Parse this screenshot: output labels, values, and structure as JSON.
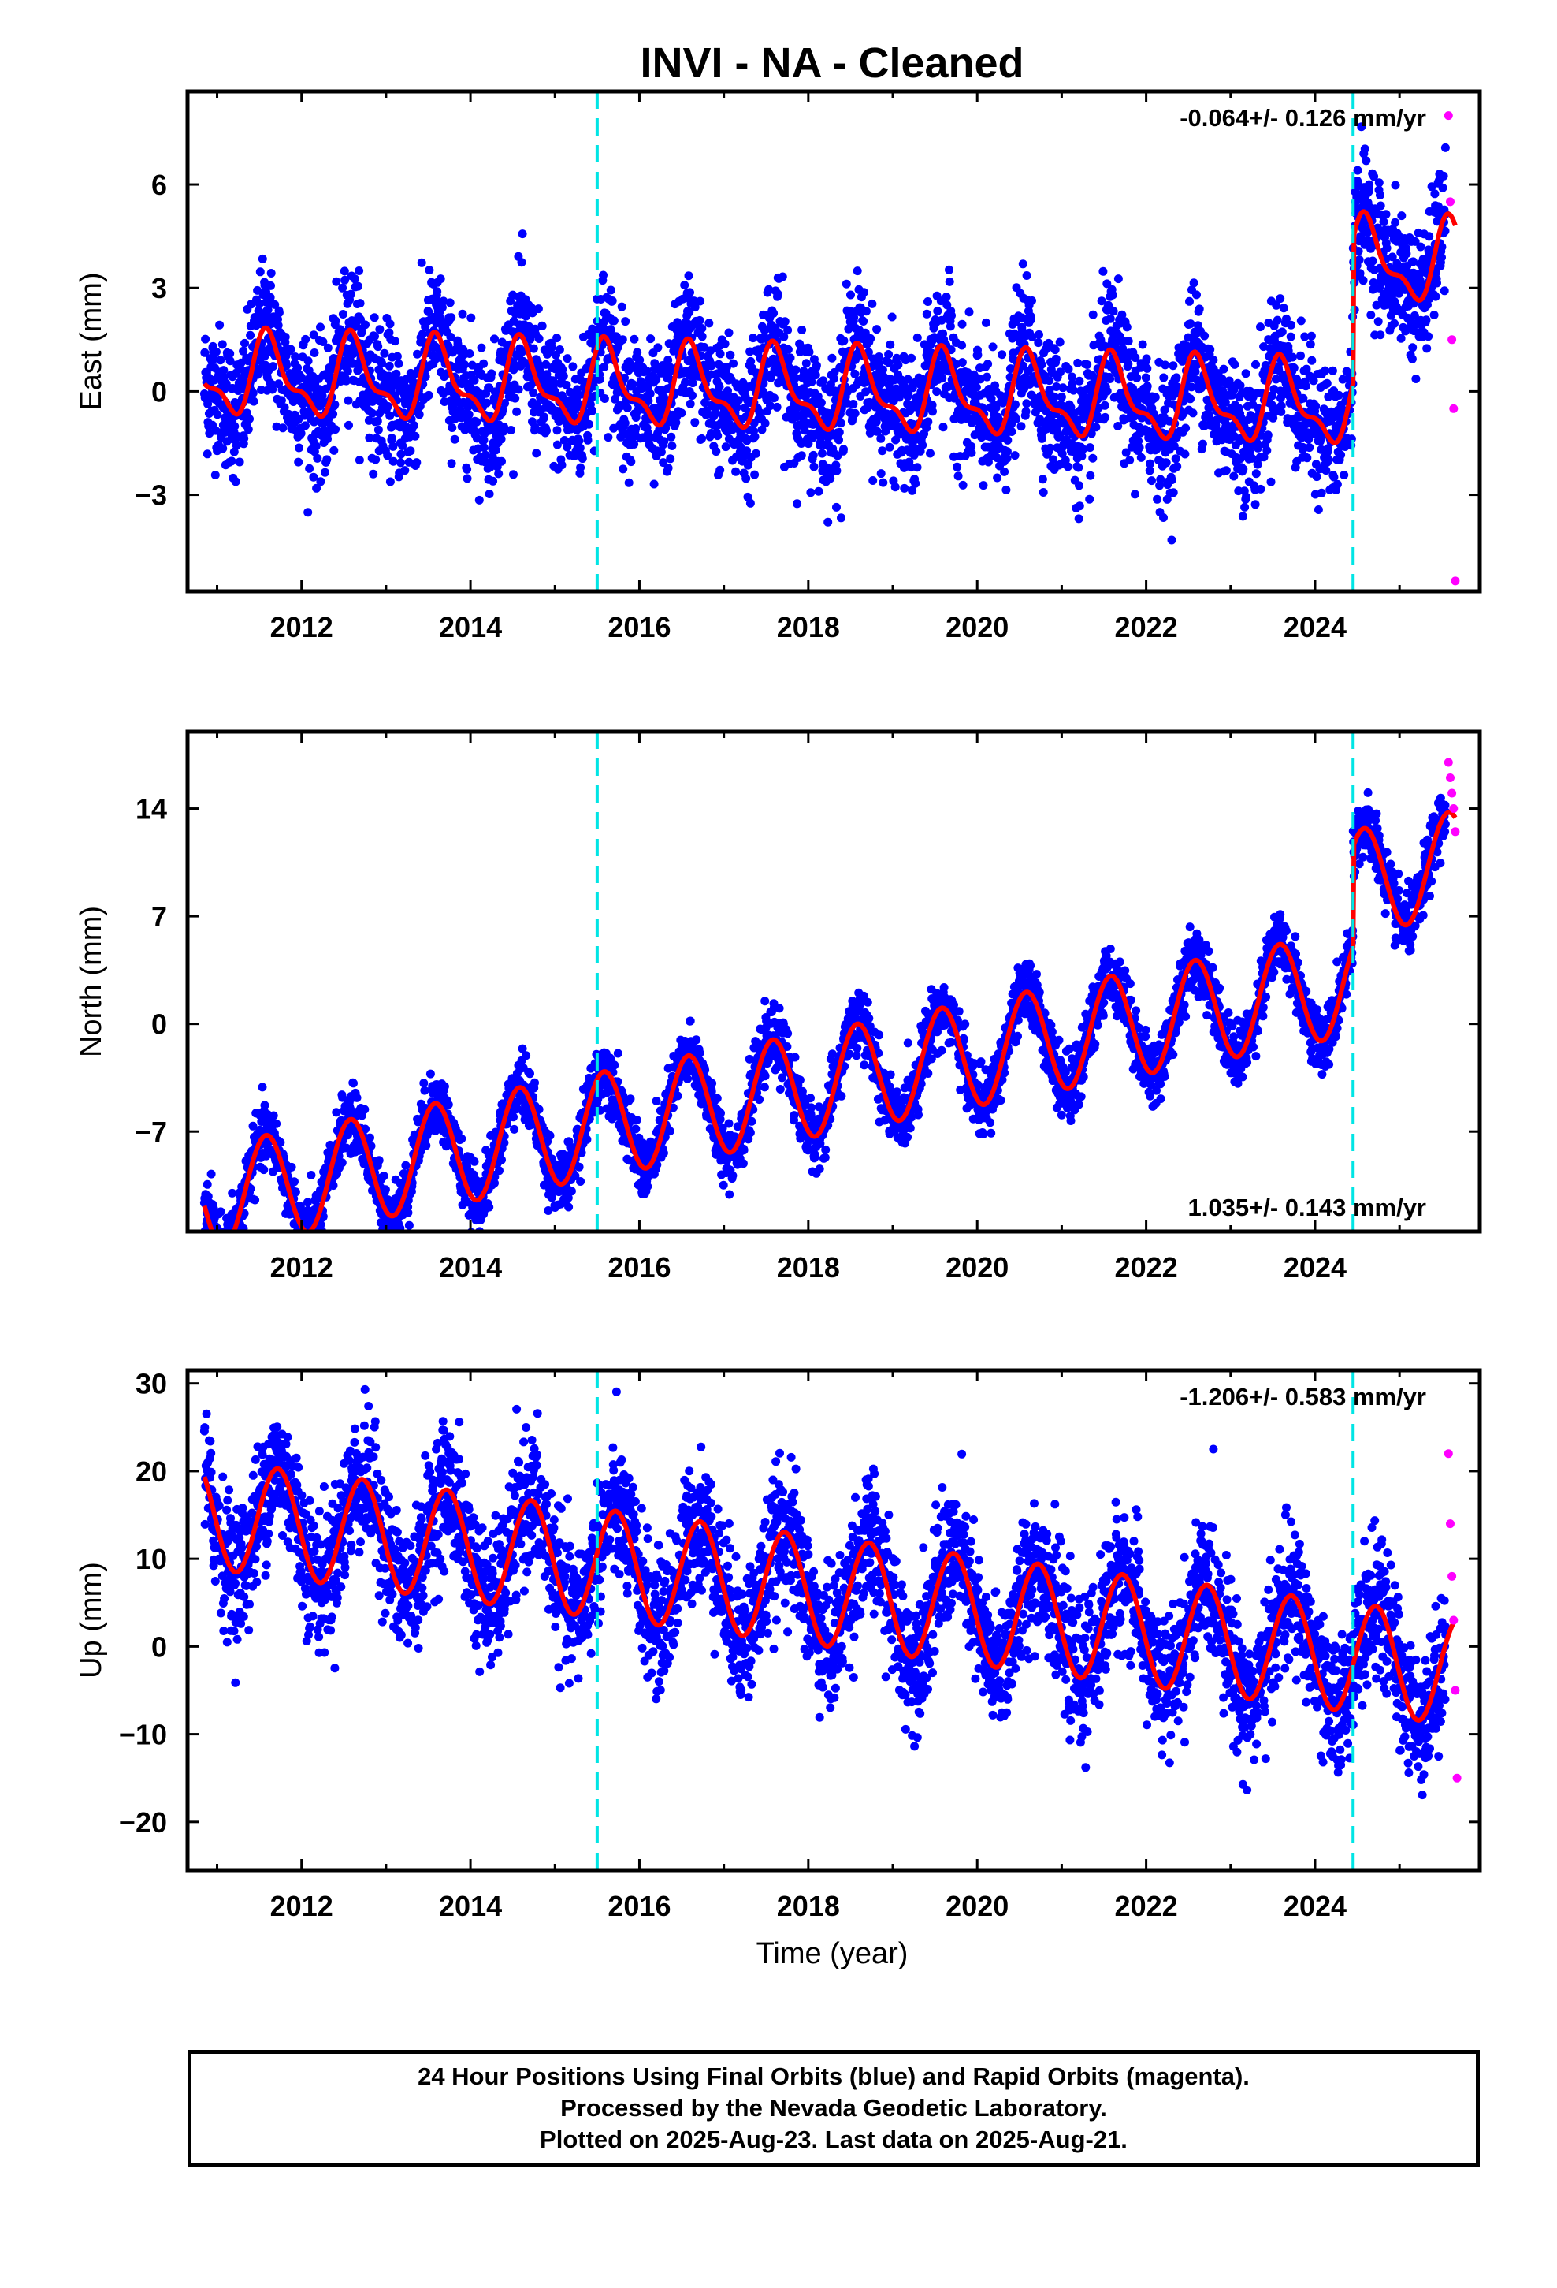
{
  "chart_data": {
    "type": "scatter",
    "title": "INVI  - NA - Cleaned",
    "xlabel": "Time (year)",
    "xlim": [
      2010.65,
      2025.95
    ],
    "xticks": [
      2012,
      2014,
      2016,
      2018,
      2020,
      2022,
      2024
    ],
    "offset_epochs": [
      2015.5,
      2024.45
    ],
    "offset_line_color": "#00e5e5",
    "final_orbit_color": "#0000ff",
    "rapid_orbit_color": "#ff00ff",
    "model_color": "#ff0000",
    "panels": [
      {
        "ylabel": "East (mm)",
        "ylim": [
          -5.8,
          8.7
        ],
        "yticks": [
          -3,
          0,
          3,
          6
        ],
        "rate_label": "-0.064+/- 0.126 mm/yr",
        "rate_position": "top-right",
        "model": {
          "mean": 0.0,
          "trend": -0.064,
          "amp_annual": 1.05,
          "phase_annual": 0.62,
          "amp_semi": 0.45,
          "phase_semi": 0.55,
          "noise": 0.95,
          "offset_2024": 4.2
        },
        "series": [
          {
            "name": "Final Orbits (blue)",
            "x": [
              2011.0,
              2012.0,
              2013.0,
              2014.0,
              2015.0,
              2016.0,
              2017.0,
              2018.0,
              2019.0,
              2020.0,
              2021.0,
              2022.0,
              2023.0,
              2024.0,
              2025.0
            ],
            "y": [
              0.2,
              0.0,
              0.1,
              -0.2,
              -0.3,
              -0.6,
              -0.4,
              -0.5,
              -0.6,
              -0.7,
              -0.8,
              -0.9,
              -1.0,
              -1.1,
              3.2
            ]
          },
          {
            "name": "Rapid Orbits (magenta)",
            "x": [
              2025.58,
              2025.6,
              2025.62,
              2025.64,
              2025.66
            ],
            "y": [
              8.0,
              5.5,
              1.5,
              -0.5,
              -5.5
            ]
          }
        ]
      },
      {
        "ylabel": "North (mm)",
        "ylim": [
          -13.5,
          19.0
        ],
        "yticks": [
          -7,
          0,
          7,
          14
        ],
        "rate_label": "1.035+/- 0.143 mm/yr",
        "rate_position": "bottom-right",
        "model": {
          "mean": -4.0,
          "trend": 1.035,
          "amp_annual": 3.4,
          "phase_annual": 0.58,
          "amp_semi": 0.0,
          "phase_semi": 0.0,
          "noise": 1.0,
          "offset_2024": 6.5
        },
        "series": [
          {
            "name": "Final Orbits (blue)",
            "x": [
              2011.0,
              2012.0,
              2013.0,
              2014.0,
              2015.0,
              2016.0,
              2017.0,
              2018.0,
              2019.0,
              2020.0,
              2021.0,
              2022.0,
              2023.0,
              2024.0,
              2025.0
            ],
            "y": [
              -8.0,
              -6.5,
              -5.7,
              -4.8,
              -3.8,
              -2.7,
              -1.8,
              -0.6,
              0.1,
              1.4,
              2.2,
              3.5,
              4.5,
              5.7,
              12.7
            ]
          },
          {
            "name": "Rapid Orbits (magenta)",
            "x": [
              2025.58,
              2025.6,
              2025.62,
              2025.64,
              2025.66
            ],
            "y": [
              17.0,
              16.0,
              15.0,
              14.0,
              12.5
            ]
          }
        ]
      },
      {
        "ylabel": "Up (mm)",
        "ylim": [
          -25.5,
          31.5
        ],
        "yticks": [
          -20,
          -10,
          0,
          10,
          20,
          30
        ],
        "rate_label": "-1.206+/- 0.583 mm/yr",
        "rate_position": "top-right",
        "model": {
          "mean": 6.5,
          "trend": -1.206,
          "amp_annual": 6.2,
          "phase_annual": 0.72,
          "amp_semi": 0.0,
          "phase_semi": 0.0,
          "noise": 3.8,
          "offset_2024": 0.0
        },
        "series": [
          {
            "name": "Final Orbits (blue)",
            "x": [
              2011.0,
              2012.0,
              2013.0,
              2014.0,
              2015.0,
              2016.0,
              2017.0,
              2018.0,
              2019.0,
              2020.0,
              2021.0,
              2022.0,
              2023.0,
              2024.0,
              2025.0
            ],
            "y": [
              7.0,
              7.5,
              6.0,
              4.5,
              3.5,
              2.5,
              1.5,
              0.5,
              -1.0,
              -2.0,
              -3.5,
              -4.5,
              -5.5,
              -6.5,
              -8.0
            ]
          },
          {
            "name": "Rapid Orbits (magenta)",
            "x": [
              2025.58,
              2025.6,
              2025.62,
              2025.64,
              2025.66,
              2025.68
            ],
            "y": [
              22.0,
              14.0,
              8.0,
              3.0,
              -5.0,
              -15.0
            ]
          }
        ]
      }
    ]
  },
  "footer": {
    "line1": "24 Hour Positions Using Final Orbits (blue) and Rapid Orbits (magenta).",
    "line2": "Processed by the Nevada Geodetic Laboratory.",
    "line3": "Plotted on 2025-Aug-23. Last data on 2025-Aug-21."
  }
}
